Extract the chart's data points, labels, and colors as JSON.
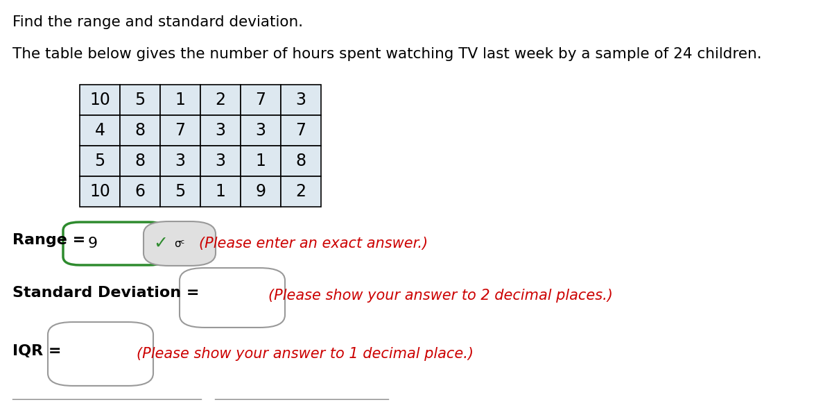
{
  "title1": "Find the range and standard deviation.",
  "title2": "The table below gives the number of hours spent watching TV last week by a sample of 24 children.",
  "table_data": [
    [
      10,
      5,
      1,
      2,
      7,
      3
    ],
    [
      4,
      8,
      7,
      3,
      3,
      7
    ],
    [
      5,
      8,
      3,
      3,
      1,
      8
    ],
    [
      10,
      6,
      5,
      1,
      9,
      2
    ]
  ],
  "range_label": "Range = ",
  "range_value": "9",
  "range_hint": "(Please enter an exact answer.)",
  "sd_label": "Standard Deviation = ",
  "sd_hint": "(Please show your answer to 2 decimal places.)",
  "iqr_label": "IQR = ",
  "iqr_hint": "(Please show your answer to 1 decimal place.)",
  "bg_color": "#ffffff",
  "text_color": "#000000",
  "red_color": "#cc0000",
  "green_color": "#2e8b2e",
  "border_color": "#000000",
  "green_border_color": "#2e8b2e",
  "gray_border_color": "#999999",
  "cell_bg_color": "#dde8f0",
  "font_size_title": 15.5,
  "font_size_table": 17,
  "font_size_labels": 16,
  "font_size_hint": 15
}
